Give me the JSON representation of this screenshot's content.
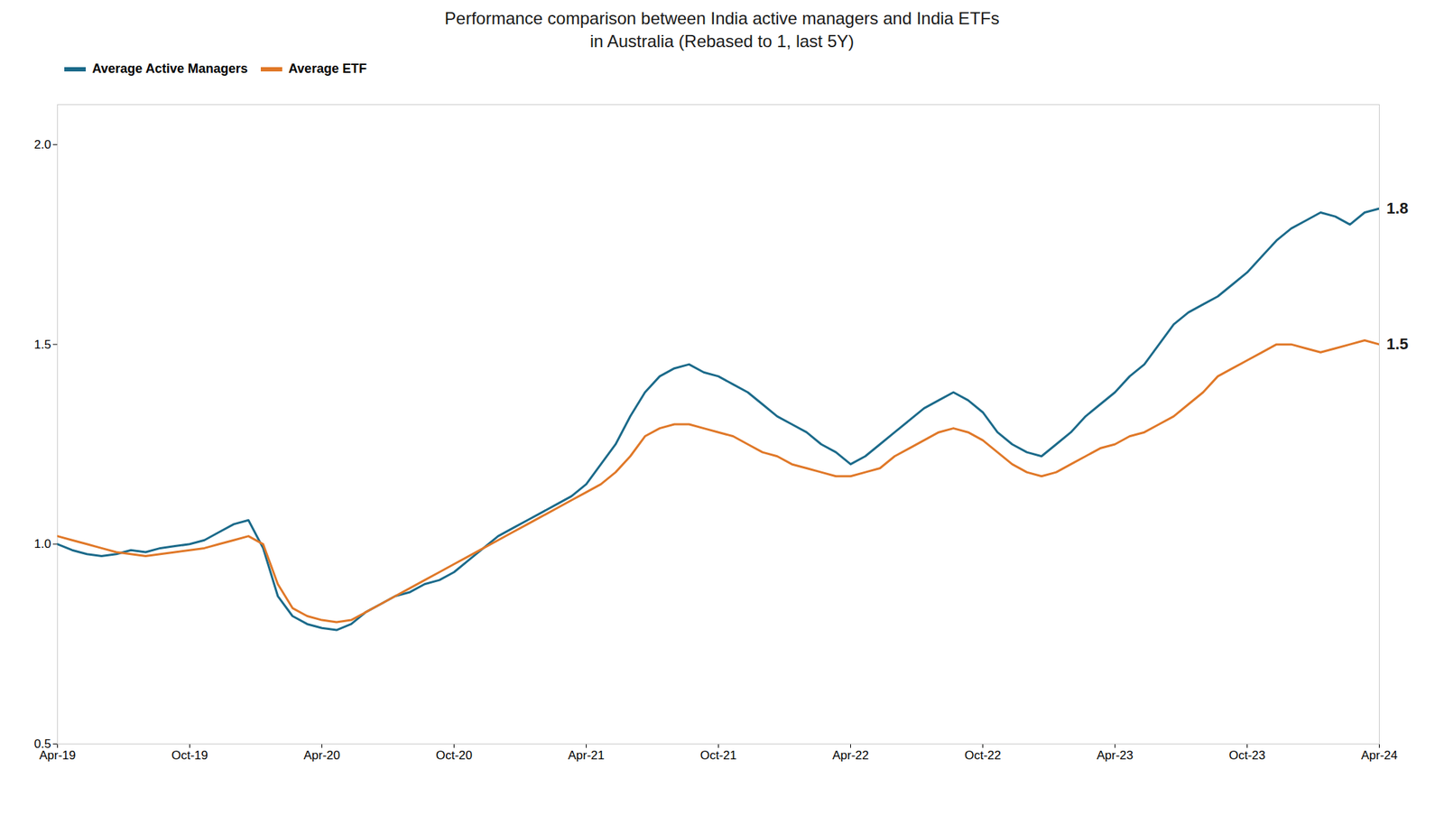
{
  "chart_data": {
    "type": "line",
    "title": "Performance comparison between India active managers and India ETFs",
    "subtitle": "in Australia (Rebased to 1, last 5Y)",
    "categories": [
      "Apr-19",
      null,
      null,
      null,
      null,
      null,
      null,
      null,
      null,
      "Oct-19",
      null,
      null,
      null,
      null,
      null,
      null,
      null,
      null,
      "Apr-20",
      null,
      null,
      null,
      null,
      null,
      null,
      null,
      null,
      "Oct-20",
      null,
      null,
      null,
      null,
      null,
      null,
      null,
      null,
      "Apr-21",
      null,
      null,
      null,
      null,
      null,
      null,
      null,
      null,
      "Oct-21",
      null,
      null,
      null,
      null,
      null,
      null,
      null,
      null,
      "Apr-22",
      null,
      null,
      null,
      null,
      null,
      null,
      null,
      null,
      "Oct-22",
      null,
      null,
      null,
      null,
      null,
      null,
      null,
      null,
      "Apr-23",
      null,
      null,
      null,
      null,
      null,
      null,
      null,
      null,
      "Oct-23",
      null,
      null,
      null,
      null,
      null,
      null,
      null,
      null,
      "Apr-24"
    ],
    "series": [
      {
        "name": "Average Active Managers",
        "color": "#1b6a8a",
        "values": [
          1.0,
          0.985,
          0.975,
          0.97,
          0.975,
          0.985,
          0.98,
          0.99,
          0.995,
          1.0,
          1.01,
          1.03,
          1.05,
          1.06,
          0.99,
          0.87,
          0.82,
          0.8,
          0.79,
          0.785,
          0.8,
          0.83,
          0.85,
          0.87,
          0.88,
          0.9,
          0.91,
          0.93,
          0.96,
          0.99,
          1.02,
          1.04,
          1.06,
          1.08,
          1.1,
          1.12,
          1.15,
          1.2,
          1.25,
          1.32,
          1.38,
          1.42,
          1.44,
          1.45,
          1.43,
          1.42,
          1.4,
          1.38,
          1.35,
          1.32,
          1.3,
          1.28,
          1.25,
          1.23,
          1.2,
          1.22,
          1.25,
          1.28,
          1.31,
          1.34,
          1.36,
          1.38,
          1.36,
          1.33,
          1.28,
          1.25,
          1.23,
          1.22,
          1.25,
          1.28,
          1.32,
          1.35,
          1.38,
          1.42,
          1.45,
          1.5,
          1.55,
          1.58,
          1.6,
          1.62,
          1.65,
          1.68,
          1.72,
          1.76,
          1.79,
          1.81,
          1.83,
          1.82,
          1.8,
          1.83,
          1.84
        ]
      },
      {
        "name": "Average ETF",
        "color": "#e07828",
        "values": [
          1.02,
          1.01,
          1.0,
          0.99,
          0.98,
          0.975,
          0.97,
          0.975,
          0.98,
          0.985,
          0.99,
          1.0,
          1.01,
          1.02,
          1.0,
          0.9,
          0.84,
          0.82,
          0.81,
          0.805,
          0.81,
          0.83,
          0.85,
          0.87,
          0.89,
          0.91,
          0.93,
          0.95,
          0.97,
          0.99,
          1.01,
          1.03,
          1.05,
          1.07,
          1.09,
          1.11,
          1.13,
          1.15,
          1.18,
          1.22,
          1.27,
          1.29,
          1.3,
          1.3,
          1.29,
          1.28,
          1.27,
          1.25,
          1.23,
          1.22,
          1.2,
          1.19,
          1.18,
          1.17,
          1.17,
          1.18,
          1.19,
          1.22,
          1.24,
          1.26,
          1.28,
          1.29,
          1.28,
          1.26,
          1.23,
          1.2,
          1.18,
          1.17,
          1.18,
          1.2,
          1.22,
          1.24,
          1.25,
          1.27,
          1.28,
          1.3,
          1.32,
          1.35,
          1.38,
          1.42,
          1.44,
          1.46,
          1.48,
          1.5,
          1.5,
          1.49,
          1.48,
          1.49,
          1.5,
          1.51,
          1.5
        ]
      }
    ],
    "annotations": [
      {
        "text": "1.8",
        "series": "Average Active Managers"
      },
      {
        "text": "1.5",
        "series": "Average ETF"
      }
    ],
    "ylim": [
      0.5,
      2.1
    ],
    "yticks": [
      0.5,
      {
        "value": 1.0,
        "label": "1.0"
      },
      1.5,
      {
        "value": 2.0,
        "label": "2.0"
      }
    ],
    "grid": false,
    "legend": "upper left"
  }
}
